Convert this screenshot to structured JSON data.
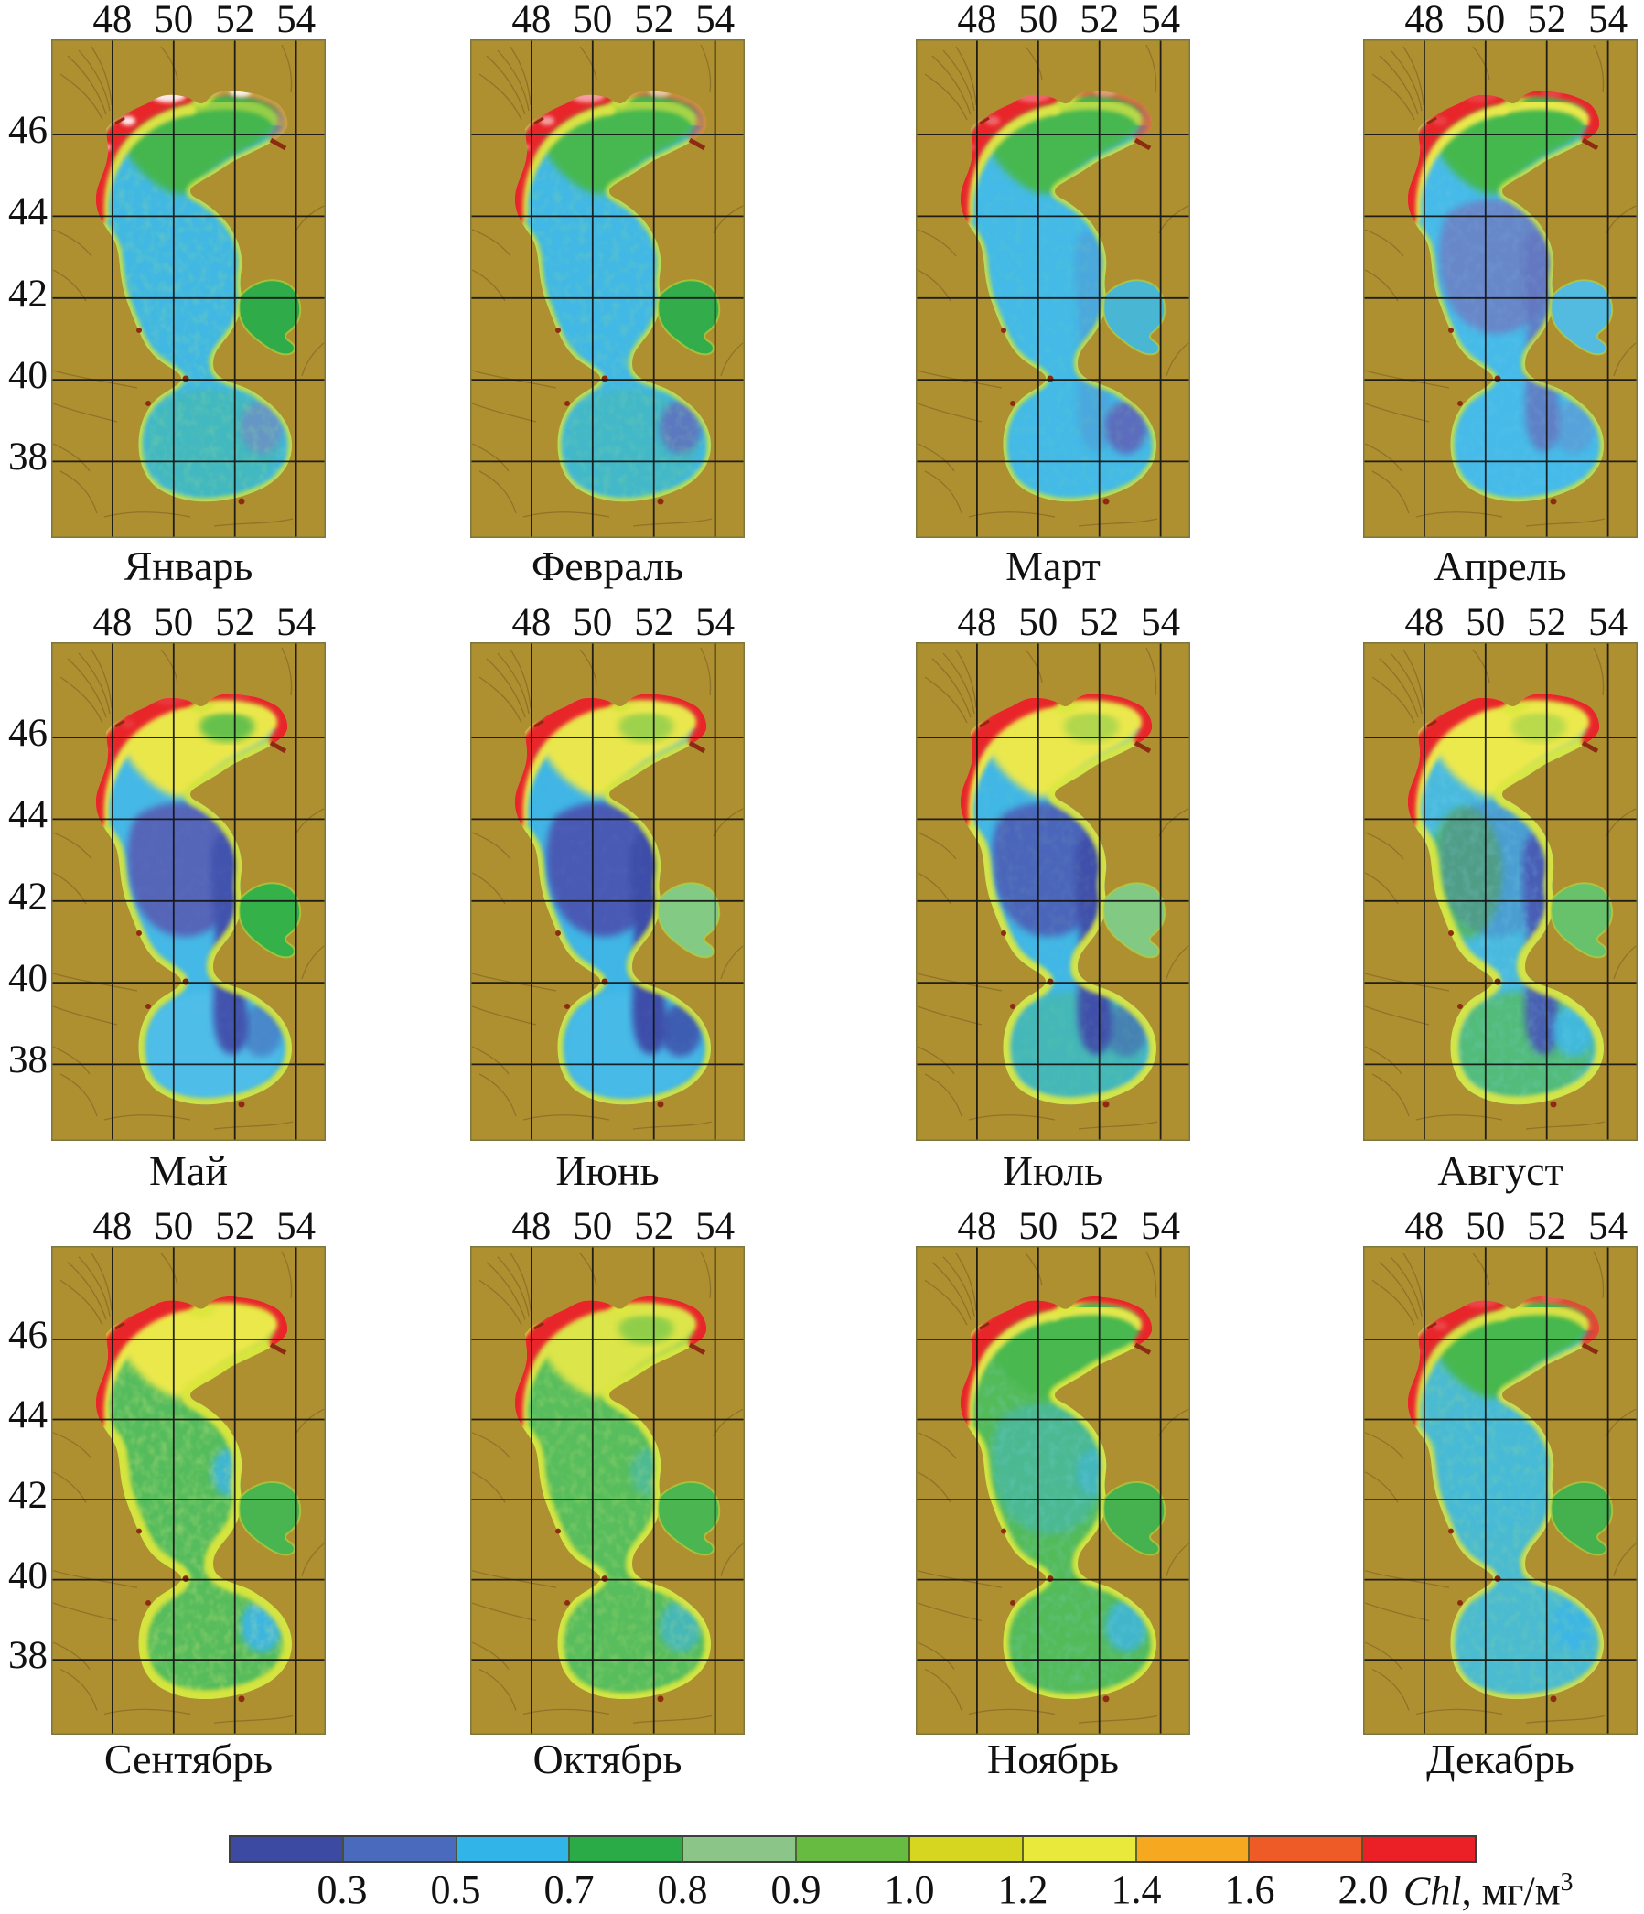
{
  "axes": {
    "lon_ticks": [
      "48",
      "50",
      "52",
      "54"
    ],
    "lat_ticks": [
      "46",
      "44",
      "42",
      "40",
      "38"
    ]
  },
  "colorbar": {
    "labels": [
      "0.3",
      "0.5",
      "0.7",
      "0.8",
      "0.9",
      "1.0",
      "1.2",
      "1.4",
      "1.6",
      "2.0"
    ],
    "colors": [
      "#3c4aa2",
      "#4a6bbd",
      "#31b5e8",
      "#2aab47",
      "#8cc588",
      "#66bb40",
      "#d6d621",
      "#e9e93c",
      "#f6a821",
      "#ee5b26",
      "#eb2026"
    ],
    "unit_italic": "Chl",
    "unit_rest": ", мг/м",
    "unit_sup": "3"
  },
  "basemap": {
    "land_color": "#ae9030",
    "river_color": "#8a6b28",
    "grid_color": "#141414",
    "border_color": "#7c763f",
    "red_color": "#e8262a",
    "ice_color": "#ffffff",
    "green_spot_color": "#45b84e",
    "se_mid_color": "#3eb6e6",
    "coast_mark_color": "#8c2a12"
  },
  "panels": [
    {
      "month": "Январь",
      "sea": "#41b8e4",
      "north": "#44b64d",
      "band": "#d9e344",
      "red_top": 0.35,
      "green_spot_op": 0,
      "ice_op": 0.9,
      "mid": "#41b8e4",
      "mid_op": 0,
      "west": "#54ba58",
      "west_op": 0,
      "tongue": "#5f7ec6",
      "tongue_op": 0,
      "south": "#49b956",
      "south_op": 0.25,
      "se_mid_op": 0,
      "se_spot": "#7688c8",
      "se_spot_op": 0.7,
      "kbg": "#2fab4a",
      "rim": "#cde23c",
      "rim_w": 4,
      "mottle": "#3fae57",
      "mottle_op": 0.45
    },
    {
      "month": "Февраль",
      "sea": "#41b8e6",
      "north": "#46b84f",
      "band": "#d9e344",
      "red_top": 0.45,
      "green_spot_op": 0,
      "ice_op": 0.55,
      "mid": "#41b8e6",
      "mid_op": 0,
      "west": "#54ba58",
      "west_op": 0,
      "tongue": "#5f7ec6",
      "tongue_op": 0,
      "south": "#49b956",
      "south_op": 0.2,
      "se_mid_op": 0,
      "se_spot": "#6172c0",
      "se_spot_op": 0.9,
      "kbg": "#33ad4c",
      "rim": "#cde23c",
      "rim_w": 4,
      "mottle": "#3fae57",
      "mottle_op": 0.38
    },
    {
      "month": "Март",
      "sea": "#43bae8",
      "north": "#47b850",
      "band": "#dbe446",
      "red_top": 0.55,
      "green_spot_op": 0,
      "ice_op": 0.3,
      "mid": "#43bae8",
      "mid_op": 0,
      "west": "#54ba58",
      "west_op": 0,
      "tongue": "#5f7ec6",
      "tongue_op": 0.3,
      "south": "#49b956",
      "south_op": 0,
      "se_mid_op": 0,
      "se_spot": "#5c6cbe",
      "se_spot_op": 1,
      "kbg": "#49b7d4",
      "rim": "#cde23c",
      "rim_w": 4,
      "mottle": "#3fae57",
      "mottle_op": 0.2
    },
    {
      "month": "Апрель",
      "sea": "#46bbe9",
      "north": "#45b84e",
      "band": "#e8e84c",
      "red_top": 1,
      "green_spot_op": 0,
      "ice_op": 0.12,
      "mid": "#6e7ec4",
      "mid_op": 0.85,
      "west": "#54ba58",
      "west_op": 0,
      "tongue": "#6376c0",
      "tongue_op": 0.85,
      "south": "#49b956",
      "south_op": 0,
      "se_mid_op": 0,
      "se_spot": "#6e7ec4",
      "se_spot_op": 0.4,
      "kbg": "#52bbdf",
      "rim": "#cde23c",
      "rim_w": 4,
      "mottle": "#58b8d8",
      "mottle_op": 0.15
    },
    {
      "month": "Май",
      "sea": "#44b9e7",
      "north": "#eae74b",
      "band": "#eae74b",
      "red_top": 1,
      "green_spot_op": 0.8,
      "ice_op": 0.08,
      "mid": "#5565b8",
      "mid_op": 1,
      "west": "#54ba58",
      "west_op": 0,
      "tongue": "#4353ae",
      "tongue_op": 1,
      "south": "#5cc6ec",
      "south_op": 0.45,
      "se_mid_op": 0,
      "se_spot": "#4353ae",
      "se_spot_op": 0.5,
      "kbg": "#35b149",
      "rim": "#d6e43e",
      "rim_w": 7,
      "mottle": "#4a6cc0",
      "mottle_op": 0.08
    },
    {
      "month": "Июнь",
      "sea": "#3fb6e6",
      "north": "#e9e74d",
      "band": "#e9e74d",
      "red_top": 1,
      "green_spot_op": 0.45,
      "ice_op": 0,
      "mid": "#4a5ab4",
      "mid_op": 1,
      "west": "#54ba58",
      "west_op": 0,
      "tongue": "#3e4ea9",
      "tongue_op": 1,
      "south": "#54c3ea",
      "south_op": 0.4,
      "se_mid_op": 0,
      "se_spot": "#3e4ea9",
      "se_spot_op": 0.85,
      "kbg": "#83ca85",
      "rim": "#d6e43e",
      "rim_w": 6,
      "mottle": "#4a6cc0",
      "mottle_op": 0.08
    },
    {
      "month": "Июль",
      "sea": "#40b7e7",
      "north": "#eae84e",
      "band": "#eae84e",
      "red_top": 1,
      "green_spot_op": 0.35,
      "ice_op": 0,
      "mid": "#4d5db6",
      "mid_op": 0.9,
      "west": "#54ba58",
      "west_op": 0,
      "tongue": "#414fab",
      "tongue_op": 1,
      "south": "#4fb964",
      "south_op": 0.35,
      "se_mid_op": 0,
      "se_spot": "#4656b0",
      "se_spot_op": 0.55,
      "kbg": "#82c984",
      "rim": "#dce740",
      "rim_w": 8,
      "mottle": "#49b85e",
      "mottle_op": 0.14
    },
    {
      "month": "Август",
      "sea": "#49bade",
      "north": "#ece94e",
      "band": "#ece94e",
      "red_top": 1,
      "green_spot_op": 0.3,
      "ice_op": 0,
      "mid": "#4d5db6",
      "mid_op": 0.3,
      "west": "#54ba58",
      "west_op": 0.8,
      "tongue": "#4a5ab4",
      "tongue_op": 0.95,
      "south": "#57bc59",
      "south_op": 0.75,
      "se_mid_op": 0,
      "se_spot": "#41b8e6",
      "se_spot_op": 0.9,
      "kbg": "#67c26b",
      "rim": "#dce740",
      "rim_w": 9,
      "mottle": "#41b8e6",
      "mottle_op": 0.28
    },
    {
      "month": "Сентябрь",
      "sea": "#55bc5e",
      "north": "#ebe84b",
      "band": "#ebe84b",
      "red_top": 1,
      "green_spot_op": 0,
      "ice_op": 0,
      "mid": "#55bc5e",
      "mid_op": 0,
      "west": "#54ba58",
      "west_op": 0,
      "tongue": "#5f7ec6",
      "tongue_op": 0,
      "south": "#5abd5c",
      "south_op": 0.45,
      "se_mid_op": 0.85,
      "se_spot": "#3eb6e6",
      "se_spot_op": 0.95,
      "kbg": "#49b551",
      "rim": "#dde63e",
      "rim_w": 10,
      "mottle": "#d6dd38",
      "mottle_op": 0.38
    },
    {
      "month": "Октябрь",
      "sea": "#57bd5d",
      "north": "#dce54a",
      "band": "#dce54a",
      "red_top": 1,
      "green_spot_op": 0.5,
      "ice_op": 0,
      "mid": "#57bd5d",
      "mid_op": 0,
      "west": "#54ba58",
      "west_op": 0,
      "tongue": "#5f7ec6",
      "tongue_op": 0,
      "south": "#5abd5c",
      "south_op": 0,
      "se_mid_op": 0.4,
      "se_spot": "#3eb6e6",
      "se_spot_op": 0.65,
      "kbg": "#4ab551",
      "rim": "#dce740",
      "rim_w": 7,
      "mottle": "#cfdb36",
      "mottle_op": 0.3
    },
    {
      "month": "Ноябрь",
      "sea": "#54bb59",
      "north": "#48b84f",
      "band": "#e3e74b",
      "red_top": 1,
      "green_spot_op": 0,
      "ice_op": 0,
      "mid": "#3fb7e6",
      "mid_op": 0.4,
      "west": "#54ba58",
      "west_op": 0,
      "tongue": "#5f7ec6",
      "tongue_op": 0,
      "south": "#5abd5c",
      "south_op": 0,
      "se_mid_op": 0.5,
      "se_spot": "#3eb6e6",
      "se_spot_op": 0.8,
      "kbg": "#46b24f",
      "rim": "#dce740",
      "rim_w": 6,
      "mottle": "#3eb6e6",
      "mottle_op": 0.28
    },
    {
      "month": "Декабрь",
      "sea": "#4bbbd2",
      "north": "#46b84e",
      "band": "#d8e145",
      "red_top": 0.8,
      "green_spot_op": 0,
      "ice_op": 0.15,
      "mid": "#41b8e6",
      "mid_op": 0.3,
      "west": "#54ba58",
      "west_op": 0,
      "tongue": "#5f7ec6",
      "tongue_op": 0,
      "south": "#5abd5c",
      "south_op": 0,
      "se_mid_op": 0,
      "se_spot": "#3eb6e6",
      "se_spot_op": 0.95,
      "kbg": "#44b14e",
      "rim": "#d8e145",
      "rim_w": 5,
      "mottle": "#3fae57",
      "mottle_op": 0.42
    }
  ]
}
